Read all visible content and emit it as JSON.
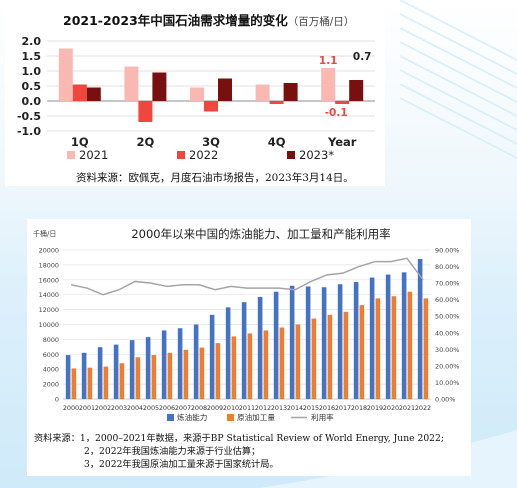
{
  "chart_data": [
    {
      "type": "bar",
      "title": "2021-2023年中国石油需求增量的变化",
      "title_unit": "（百万桶/日）",
      "categories": [
        "1Q",
        "2Q",
        "3Q",
        "4Q",
        "Year"
      ],
      "ylim": [
        -1.0,
        2.0
      ],
      "yticks": [
        "2.0",
        "1.5",
        "1.0",
        "0.5",
        "0.0",
        "-0.5",
        "-1.0"
      ],
      "ytick_values": [
        2.0,
        1.5,
        1.0,
        0.5,
        0.0,
        -0.5,
        -1.0
      ],
      "grid": true,
      "legend_position": "bottom",
      "series": [
        {
          "name": "2021",
          "color": "#f9b8b2",
          "values": [
            1.75,
            1.15,
            0.45,
            0.55,
            1.1
          ]
        },
        {
          "name": "2022",
          "color": "#f0463e",
          "values": [
            0.55,
            -0.7,
            -0.35,
            -0.1,
            -0.1
          ]
        },
        {
          "name": "2023*",
          "color": "#7a0f0f",
          "values": [
            0.45,
            0.95,
            0.75,
            0.6,
            0.7
          ]
        }
      ],
      "data_labels": {
        "year_2021": "1.1",
        "year_2022": "-0.1",
        "year_2023": "0.7"
      },
      "source": "资料来源：欧佩克，月度石油市场报告，2023年3月14日。"
    },
    {
      "type": "bar",
      "title": "2000年以来中国的炼油能力、加工量和产能利用率",
      "ylabel": "千桶/日",
      "categories": [
        "2000",
        "2001",
        "2002",
        "2003",
        "2004",
        "2005",
        "2006",
        "2007",
        "2008",
        "2009",
        "2010",
        "2011",
        "2012",
        "2013",
        "2014",
        "2015",
        "2016",
        "2017",
        "2018",
        "2019",
        "2020",
        "2021",
        "2022"
      ],
      "ylim": [
        0,
        20000
      ],
      "yticks": [
        "20000",
        "18000",
        "16000",
        "14000",
        "12000",
        "10000",
        "8000",
        "6000",
        "4000",
        "2000",
        "0"
      ],
      "ytick_values": [
        20000,
        18000,
        16000,
        14000,
        12000,
        10000,
        8000,
        6000,
        4000,
        2000,
        0
      ],
      "y2lim": [
        0,
        90
      ],
      "y2ticks": [
        "90.00%",
        "80.00%",
        "70.00%",
        "60.00%",
        "50.00%",
        "40.00%",
        "30.00%",
        "20.00%",
        "10.00%",
        "0.00%"
      ],
      "y2tick_values": [
        90,
        80,
        70,
        60,
        50,
        40,
        30,
        20,
        10,
        0
      ],
      "grid": true,
      "legend_position": "bottom",
      "series": [
        {
          "name": "炼油能力",
          "color": "#4472c4",
          "values": [
            5900,
            6200,
            6950,
            7300,
            7900,
            8300,
            9200,
            9500,
            10000,
            11300,
            12300,
            13000,
            13700,
            14400,
            15200,
            15100,
            15000,
            15400,
            15700,
            16300,
            16700,
            17000,
            18800
          ]
        },
        {
          "name": "原油加工量",
          "color": "#ed7d31",
          "values": [
            4100,
            4200,
            4350,
            4800,
            5600,
            5900,
            6200,
            6600,
            6900,
            7500,
            8400,
            8800,
            9200,
            9600,
            10000,
            10800,
            11300,
            11700,
            12600,
            13500,
            13800,
            14400,
            13500
          ]
        },
        {
          "name": "利用率",
          "color": "#a5a5a5",
          "type": "line",
          "axis": "right",
          "values": [
            69,
            67,
            63,
            66,
            71,
            70,
            68,
            69,
            69,
            66,
            68,
            67,
            67,
            67,
            66,
            71,
            75,
            76,
            80,
            83,
            83,
            85,
            72
          ]
        }
      ],
      "source_lines": [
        "资料来源：1，2000–2021年数据，来源于BP Statistical Review of World Energy, June 2022;",
        "2，2022年我国炼油能力来源于行业估算；",
        "3，2022年我国原油加工量来源于国家统计局。"
      ]
    }
  ]
}
